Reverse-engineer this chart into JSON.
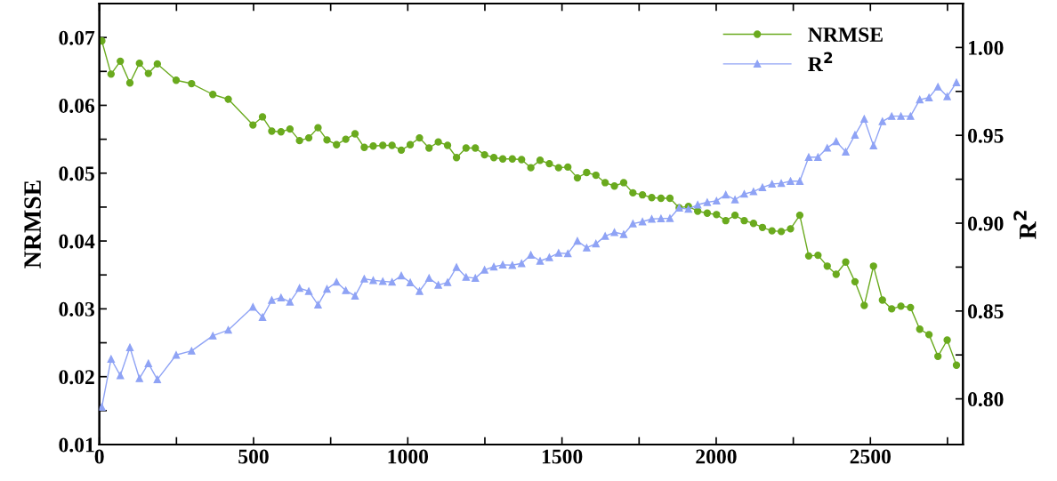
{
  "chart_data": {
    "type": "line",
    "ylabel": "NRMSE",
    "y2label": "R$^{2}$",
    "x": [
      8,
      38,
      68,
      99,
      130,
      159,
      188,
      249,
      299,
      368,
      418,
      498,
      529,
      559,
      589,
      618,
      649,
      679,
      709,
      738,
      769,
      799,
      829,
      859,
      888,
      919,
      949,
      979,
      1008,
      1038,
      1069,
      1099,
      1129,
      1158,
      1189,
      1219,
      1249,
      1279,
      1308,
      1339,
      1369,
      1399,
      1429,
      1459,
      1489,
      1519,
      1550,
      1580,
      1610,
      1640,
      1670,
      1700,
      1730,
      1761,
      1791,
      1821,
      1850,
      1880,
      1910,
      1940,
      1971,
      2001,
      2031,
      2061,
      2091,
      2121,
      2150,
      2181,
      2211,
      2241,
      2271,
      2300,
      2330,
      2360,
      2389,
      2420,
      2450,
      2480,
      2510,
      2539,
      2569,
      2599,
      2630,
      2660,
      2690,
      2719,
      2749,
      2779
    ],
    "series": [
      {
        "name": "NRMSE",
        "color": "#6aaa1e",
        "marker": "circle",
        "values": [
          0.0695,
          0.0646,
          0.0665,
          0.0633,
          0.0662,
          0.0647,
          0.0661,
          0.0637,
          0.0632,
          0.0616,
          0.0609,
          0.0571,
          0.0583,
          0.0562,
          0.0561,
          0.0565,
          0.0548,
          0.0552,
          0.0567,
          0.0549,
          0.0542,
          0.055,
          0.0558,
          0.0538,
          0.054,
          0.0541,
          0.0541,
          0.0534,
          0.0542,
          0.0552,
          0.0537,
          0.0546,
          0.0541,
          0.0523,
          0.0537,
          0.0537,
          0.0527,
          0.0523,
          0.0521,
          0.0521,
          0.052,
          0.0508,
          0.0519,
          0.0514,
          0.0508,
          0.0509,
          0.0493,
          0.0501,
          0.0497,
          0.0486,
          0.0481,
          0.0486,
          0.0471,
          0.0468,
          0.0464,
          0.0463,
          0.0463,
          0.0449,
          0.0451,
          0.0444,
          0.0441,
          0.0439,
          0.043,
          0.0438,
          0.043,
          0.0426,
          0.042,
          0.0415,
          0.0414,
          0.0418,
          0.0438,
          0.0378,
          0.0379,
          0.0363,
          0.0351,
          0.0369,
          0.034,
          0.0305,
          0.0363,
          0.0313,
          0.03,
          0.0304,
          0.0302,
          0.027,
          0.0262,
          0.023,
          0.0254,
          0.0217
        ]
      },
      {
        "name": "R$^{2}$",
        "color": "#8fa3f5",
        "marker": "triangle",
        "axis": "y2",
        "values": [
          0.7953,
          0.8227,
          0.8133,
          0.8293,
          0.8116,
          0.8201,
          0.811,
          0.825,
          0.8273,
          0.8359,
          0.8392,
          0.8523,
          0.8465,
          0.8562,
          0.8576,
          0.8552,
          0.863,
          0.8613,
          0.8535,
          0.8625,
          0.8665,
          0.8617,
          0.8586,
          0.8683,
          0.8675,
          0.8669,
          0.8665,
          0.8701,
          0.8662,
          0.8613,
          0.8687,
          0.8648,
          0.8663,
          0.8749,
          0.8693,
          0.8687,
          0.8734,
          0.8752,
          0.8763,
          0.8761,
          0.8771,
          0.8819,
          0.8785,
          0.8805,
          0.883,
          0.8827,
          0.8899,
          0.886,
          0.8883,
          0.8926,
          0.8948,
          0.8937,
          0.8997,
          0.9009,
          0.9024,
          0.9026,
          0.9028,
          0.9087,
          0.908,
          0.9105,
          0.9119,
          0.9127,
          0.9162,
          0.9134,
          0.9166,
          0.918,
          0.9203,
          0.9223,
          0.9227,
          0.9239,
          0.9239,
          0.9376,
          0.9376,
          0.9428,
          0.9465,
          0.9406,
          0.9502,
          0.9593,
          0.9441,
          0.9579,
          0.9609,
          0.9609,
          0.9609,
          0.9703,
          0.9715,
          0.9776,
          0.9721,
          0.9801
        ]
      }
    ],
    "xlim": [
      0,
      2800
    ],
    "xticks": [
      0,
      {
        "value": 250,
        "label": null
      },
      500,
      {
        "value": 750,
        "label": null
      },
      1000,
      {
        "value": 1250,
        "label": null
      },
      1500,
      {
        "value": 1750,
        "label": null
      },
      2000,
      {
        "value": 2250,
        "label": null
      },
      2500,
      {
        "value": 2750,
        "label": null
      }
    ],
    "ylim": [
      0.01,
      0.075
    ],
    "yticks": [
      0.01,
      {
        "value": 0.015,
        "label": null
      },
      0.02,
      {
        "value": 0.025,
        "label": null
      },
      0.03,
      {
        "value": 0.035,
        "label": null
      },
      0.04,
      {
        "value": 0.045,
        "label": null
      },
      0.05,
      {
        "value": 0.055,
        "label": null
      },
      0.06,
      {
        "value": 0.065,
        "label": null
      },
      0.07
    ],
    "y2lim": [
      0.774,
      1.025
    ],
    "y2ticks": [
      {
        "value": 0.8,
        "label": "0.80"
      },
      {
        "value": 0.825,
        "label": null
      },
      {
        "value": 0.85,
        "label": "0.85"
      },
      {
        "value": 0.875,
        "label": null
      },
      {
        "value": 0.9,
        "label": "0.90"
      },
      {
        "value": 0.925,
        "label": null
      },
      {
        "value": 0.95,
        "label": "0.95"
      },
      {
        "value": 0.975,
        "label": null
      },
      {
        "value": 1.0,
        "label": "1.00"
      }
    ],
    "grid": false,
    "legend": "top right",
    "line_style": "solid"
  }
}
